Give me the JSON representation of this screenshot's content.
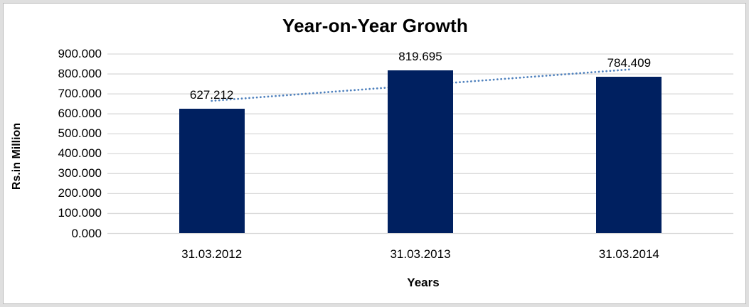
{
  "chart_data": {
    "type": "bar",
    "title": "Year-on-Year Growth",
    "xlabel": "Years",
    "ylabel": "Rs.in Million",
    "categories": [
      "31.03.2012",
      "31.03.2013",
      "31.03.2014"
    ],
    "values": [
      627.212,
      819.695,
      784.409
    ],
    "data_labels": [
      "627.212",
      "819.695",
      "784.409"
    ],
    "ylim": [
      0,
      900
    ],
    "ytick_step": 100,
    "yticks": [
      "0.000",
      "100.000",
      "200.000",
      "300.000",
      "400.000",
      "500.000",
      "600.000",
      "700.000",
      "800.000",
      "900.000"
    ],
    "grid": true,
    "legend": "none",
    "trendline": {
      "type": "linear",
      "style": "dotted"
    },
    "colors": {
      "bar": "#002060",
      "trendline": "#4f81bd",
      "gridline": "#d9d9d9",
      "text": "#000000",
      "frame_background": "#dfdfdf",
      "frame_border": "#b9b9b9",
      "plot_background": "#ffffff"
    }
  }
}
